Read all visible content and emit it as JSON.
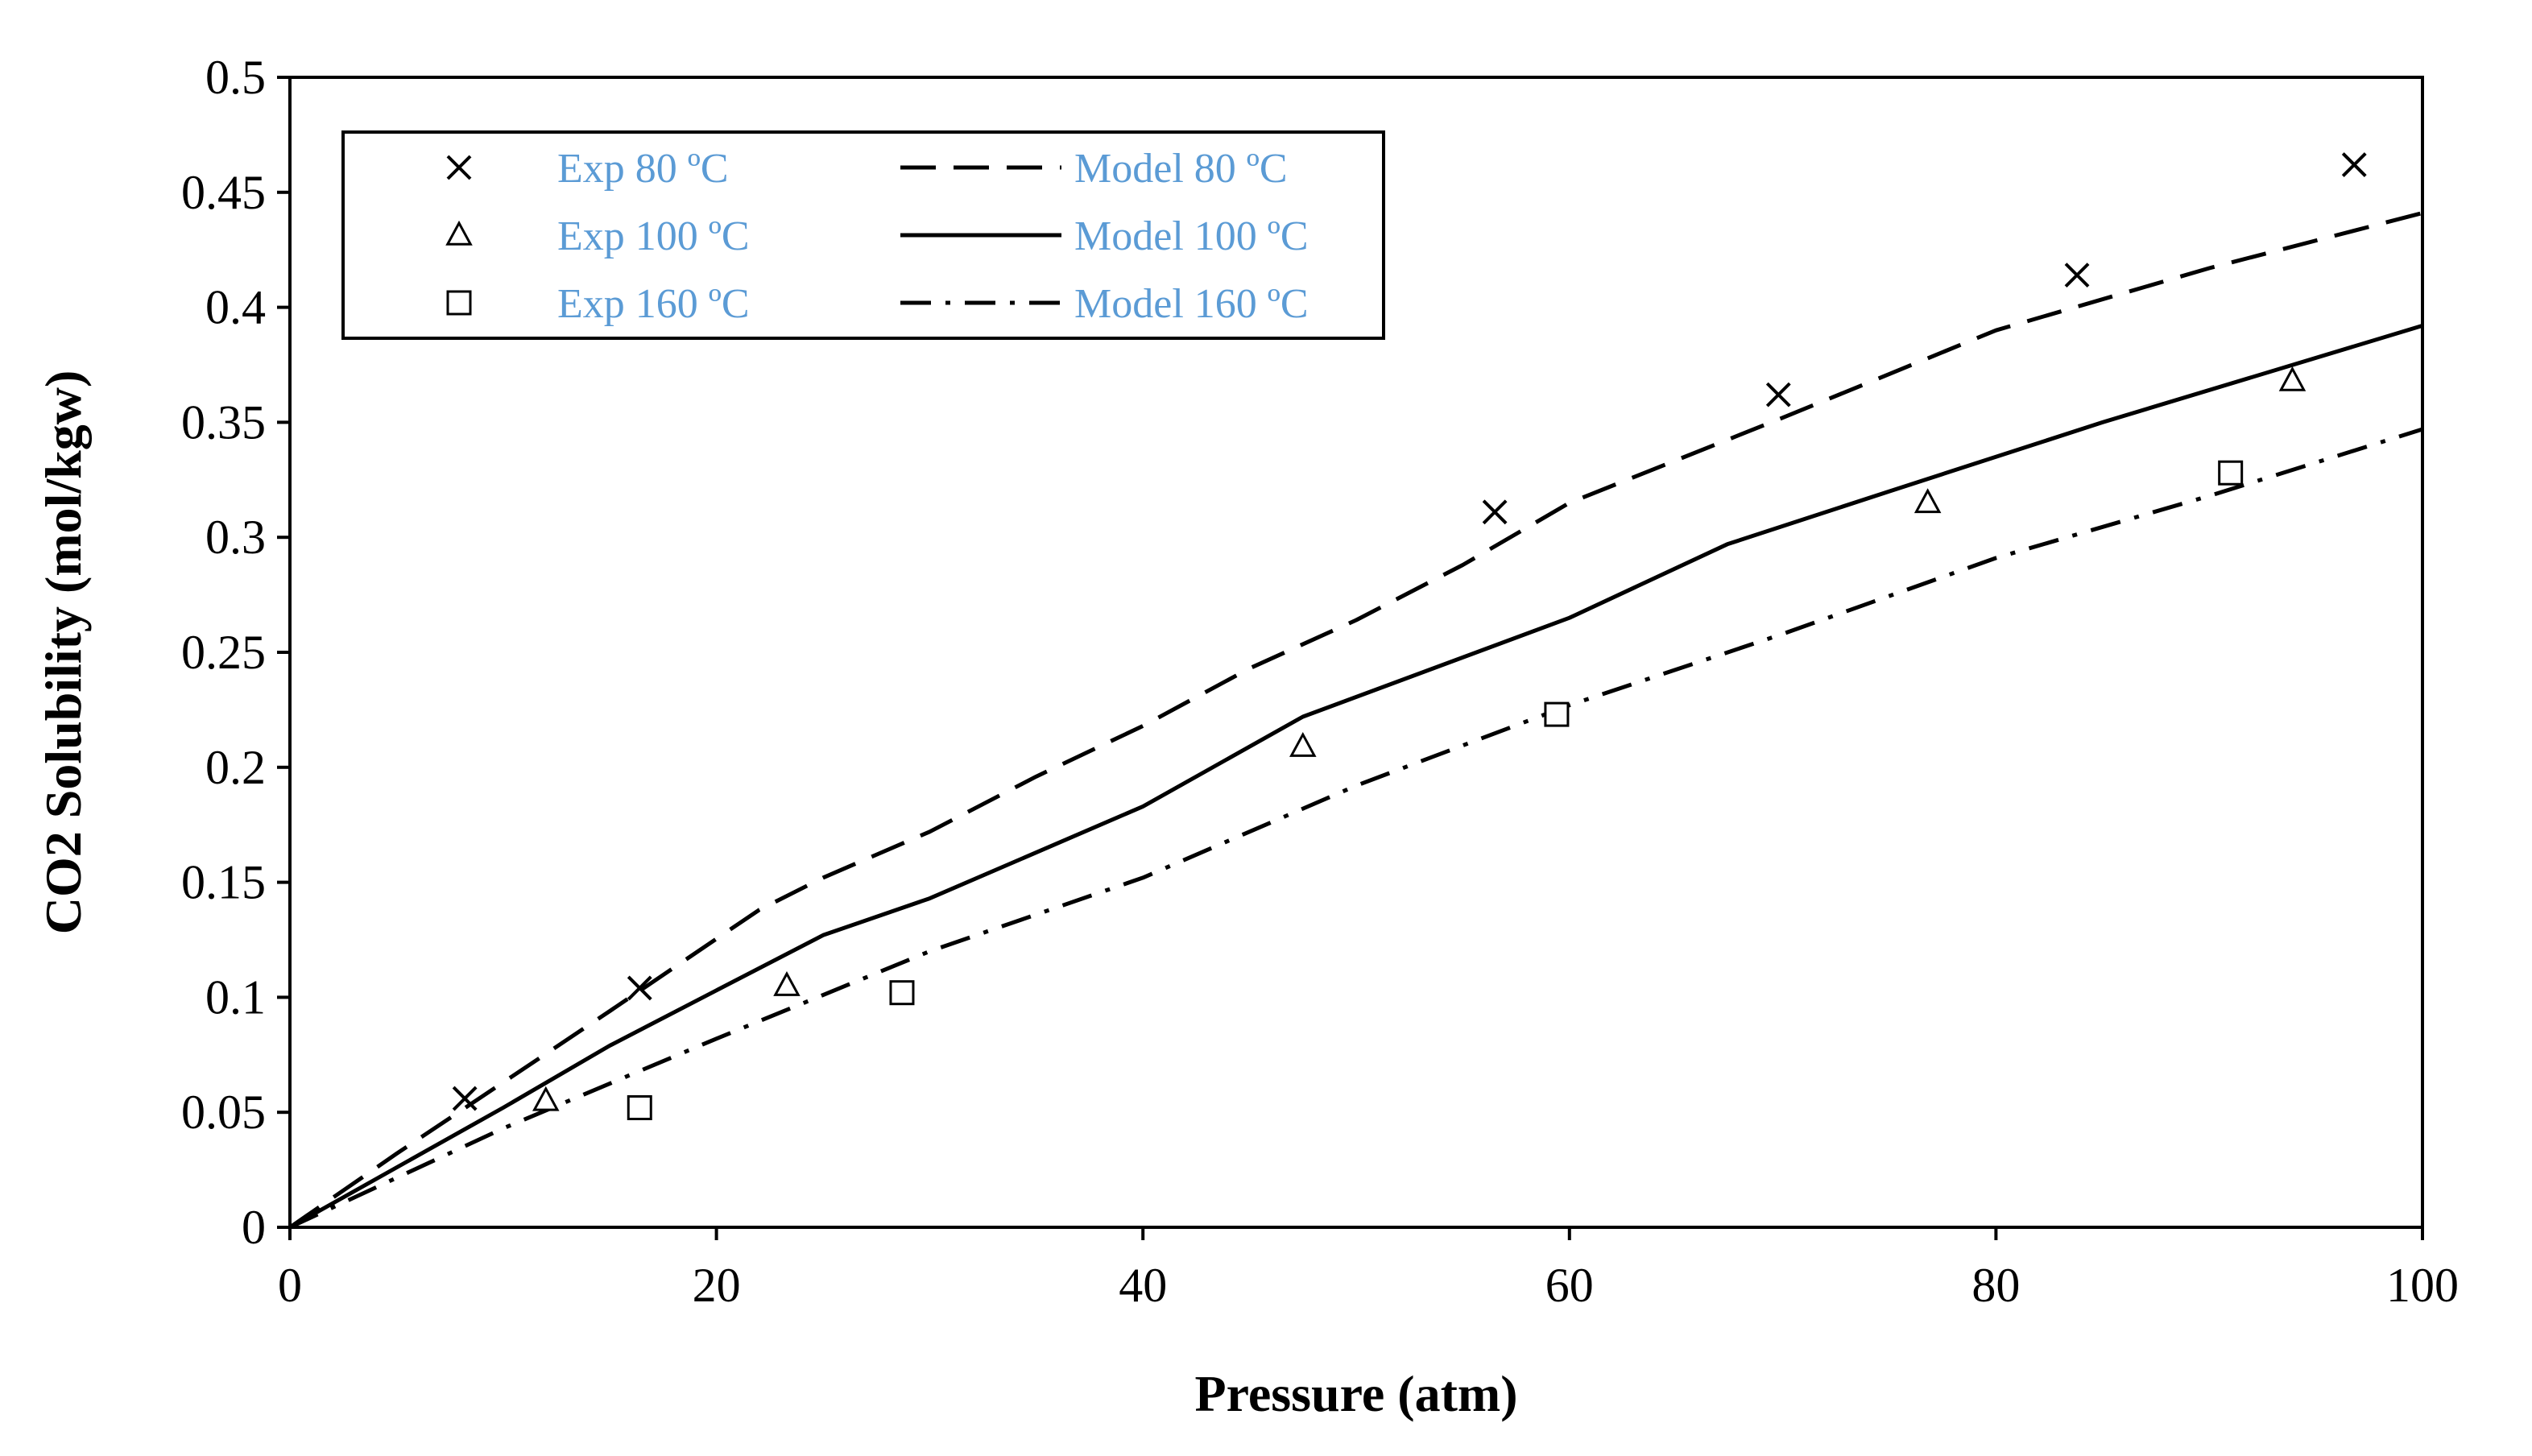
{
  "chart_data": {
    "type": "scatter",
    "title": "",
    "xlabel": "Pressure (atm)",
    "ylabel": "CO2 Solubility (mol/kgw)",
    "xlim": [
      0,
      100
    ],
    "ylim": [
      0,
      0.5
    ],
    "x_ticks": [
      0,
      20,
      40,
      60,
      80,
      100
    ],
    "y_ticks": [
      0,
      0.05,
      0.1,
      0.15,
      0.2,
      0.25,
      0.3,
      0.35,
      0.4,
      0.45,
      0.5
    ],
    "x_tick_labels": [
      "0",
      "20",
      "40",
      "60",
      "80",
      "100"
    ],
    "y_tick_labels": [
      "0",
      "0.05",
      "0.1",
      "0.15",
      "0.2",
      "0.25",
      "0.3",
      "0.35",
      "0.4",
      "0.45",
      "0.5"
    ],
    "grid": false,
    "legend_position": "top-left",
    "legend_text_color": "#5B9BD5",
    "series": [
      {
        "name": "Exp 80 ºC",
        "kind": "marker",
        "marker": "x",
        "points": [
          [
            8.2,
            0.056
          ],
          [
            16.4,
            0.104
          ],
          [
            56.5,
            0.311
          ],
          [
            69.8,
            0.362
          ],
          [
            83.8,
            0.414
          ],
          [
            96.8,
            0.462
          ]
        ]
      },
      {
        "name": "Exp 100 ºC",
        "kind": "marker",
        "marker": "triangle",
        "points": [
          [
            12.0,
            0.055
          ],
          [
            23.3,
            0.105
          ],
          [
            47.5,
            0.209
          ],
          [
            76.8,
            0.315
          ],
          [
            93.9,
            0.368
          ]
        ]
      },
      {
        "name": "Exp 160 ºC",
        "kind": "marker",
        "marker": "square",
        "points": [
          [
            16.4,
            0.052
          ],
          [
            28.7,
            0.102
          ],
          [
            59.4,
            0.223
          ],
          [
            91.0,
            0.328
          ]
        ]
      },
      {
        "name": "Model 80 ºC",
        "kind": "line",
        "dash": "long",
        "points": [
          [
            0,
            0
          ],
          [
            5,
            0.032
          ],
          [
            10,
            0.063
          ],
          [
            15,
            0.094
          ],
          [
            22,
            0.138
          ],
          [
            25,
            0.152
          ],
          [
            30,
            0.172
          ],
          [
            35,
            0.196
          ],
          [
            40,
            0.218
          ],
          [
            45,
            0.243
          ],
          [
            50,
            0.264
          ],
          [
            55,
            0.288
          ],
          [
            60,
            0.315
          ],
          [
            70,
            0.352
          ],
          [
            80,
            0.39
          ],
          [
            90,
            0.417
          ],
          [
            100,
            0.441
          ]
        ]
      },
      {
        "name": "Model 100 ºC",
        "kind": "line",
        "dash": "solid",
        "points": [
          [
            0,
            0
          ],
          [
            10,
            0.052
          ],
          [
            15,
            0.079
          ],
          [
            20,
            0.103
          ],
          [
            25,
            0.127
          ],
          [
            30,
            0.143
          ],
          [
            40,
            0.183
          ],
          [
            47.5,
            0.222
          ],
          [
            60,
            0.265
          ],
          [
            67.4,
            0.297
          ],
          [
            75,
            0.32
          ],
          [
            85,
            0.35
          ],
          [
            100,
            0.392
          ]
        ]
      },
      {
        "name": "Model 160 ºC",
        "kind": "line",
        "dash": "dashdot",
        "points": [
          [
            0,
            0
          ],
          [
            10,
            0.043
          ],
          [
            20,
            0.082
          ],
          [
            30,
            0.12
          ],
          [
            40,
            0.152
          ],
          [
            50,
            0.192
          ],
          [
            60,
            0.227
          ],
          [
            70,
            0.258
          ],
          [
            80,
            0.291
          ],
          [
            90,
            0.318
          ],
          [
            100,
            0.347
          ]
        ]
      }
    ]
  }
}
